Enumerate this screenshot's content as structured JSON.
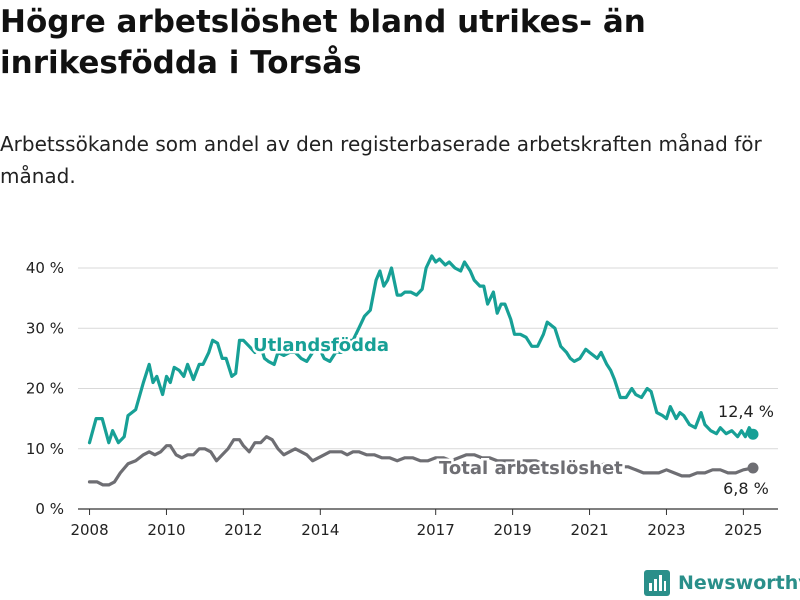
{
  "title": "Högre arbetslöshet bland utrikes- än inrikesfödda i Torsås",
  "subtitle": "Arbetssökande som andel av den registerbaserade arbetskraften månad för månad.",
  "brand": "Newsworthy",
  "brand_icon": "bar-chart-logo-icon",
  "chart_data": {
    "type": "line",
    "title": "",
    "xlabel": "",
    "ylabel": "",
    "xlim": [
      2007.7,
      2025.9
    ],
    "ylim": [
      0,
      45
    ],
    "yticks": [
      0,
      10,
      20,
      30,
      40
    ],
    "ytick_labels": [
      "0 %",
      "10 %",
      "20 %",
      "30 %",
      "40 %"
    ],
    "xticks": [
      2008,
      2010,
      2012,
      2014,
      2017,
      2019,
      2021,
      2023,
      2025
    ],
    "xtick_labels": [
      "2008",
      "2010",
      "2012",
      "2014",
      "2017",
      "2019",
      "2021",
      "2023",
      "2025"
    ],
    "grid": "horizontal",
    "legend": "inline labels",
    "series": [
      {
        "name": "Utlandsfödda",
        "color": "#17a096",
        "end_label": "12,4 %",
        "x": [
          2008.0,
          2008.17,
          2008.33,
          2008.5,
          2008.6,
          2008.75,
          2008.9,
          2009.0,
          2009.2,
          2009.4,
          2009.55,
          2009.65,
          2009.75,
          2009.9,
          2010.0,
          2010.1,
          2010.2,
          2010.33,
          2010.45,
          2010.55,
          2010.7,
          2010.85,
          2010.95,
          2011.1,
          2011.2,
          2011.33,
          2011.45,
          2011.55,
          2011.7,
          2011.8,
          2011.9,
          2012.0,
          2012.15,
          2012.3,
          2012.45,
          2012.55,
          2012.65,
          2012.8,
          2012.9,
          2013.05,
          2013.2,
          2013.35,
          2013.5,
          2013.65,
          2013.8,
          2013.95,
          2014.1,
          2014.25,
          2014.4,
          2014.55,
          2014.7,
          2014.85,
          2015.0,
          2015.15,
          2015.3,
          2015.45,
          2015.55,
          2015.65,
          2015.75,
          2015.85,
          2016.0,
          2016.1,
          2016.2,
          2016.35,
          2016.5,
          2016.65,
          2016.75,
          2016.9,
          2017.0,
          2017.1,
          2017.25,
          2017.35,
          2017.5,
          2017.65,
          2017.75,
          2017.9,
          2018.0,
          2018.15,
          2018.25,
          2018.35,
          2018.5,
          2018.6,
          2018.7,
          2018.8,
          2018.95,
          2019.05,
          2019.2,
          2019.35,
          2019.5,
          2019.65,
          2019.8,
          2019.9,
          2020.0,
          2020.1,
          2020.25,
          2020.4,
          2020.5,
          2020.6,
          2020.75,
          2020.9,
          2021.0,
          2021.1,
          2021.2,
          2021.3,
          2021.45,
          2021.55,
          2021.65,
          2021.8,
          2021.95,
          2022.1,
          2022.2,
          2022.35,
          2022.5,
          2022.6,
          2022.75,
          2022.9,
          2023.0,
          2023.1,
          2023.25,
          2023.35,
          2023.45,
          2023.6,
          2023.75,
          2023.9,
          2024.0,
          2024.15,
          2024.3,
          2024.4,
          2024.55,
          2024.7,
          2024.85,
          2024.95,
          2025.05,
          2025.15,
          2025.25
        ],
        "y": [
          11,
          15,
          15,
          11,
          13,
          11,
          12,
          15.5,
          16.5,
          21,
          24,
          21,
          22,
          19,
          22,
          21,
          23.5,
          23,
          22,
          24,
          21.5,
          24,
          24,
          26,
          28,
          27.5,
          25,
          25,
          22,
          22.5,
          28,
          28,
          27,
          26,
          27,
          25,
          24.5,
          24,
          26,
          25.5,
          26,
          26,
          25,
          24.5,
          26,
          27,
          25,
          24.5,
          26,
          26,
          28,
          28,
          30,
          32,
          33,
          38,
          39.5,
          37,
          38,
          40,
          35.5,
          35.5,
          36,
          36,
          35.5,
          36.5,
          40,
          42,
          41,
          41.5,
          40.5,
          41,
          40,
          39.5,
          41,
          39.5,
          38,
          37,
          37,
          34,
          36,
          32.5,
          34,
          34,
          31.5,
          29,
          29,
          28.5,
          27,
          27,
          29,
          31,
          30.5,
          30,
          27,
          26,
          25,
          24.5,
          25,
          26.5,
          26,
          25.5,
          25,
          26,
          24,
          23,
          21.5,
          18.5,
          18.5,
          20,
          19,
          18.5,
          20,
          19.5,
          16,
          15.5,
          15,
          17,
          15,
          16,
          15.5,
          14,
          13.5,
          16,
          14,
          13,
          12.5,
          13.5,
          12.5,
          13,
          12,
          13,
          12,
          13.5,
          12.4
        ]
      },
      {
        "name": "Total arbetslöshet",
        "color": "#6e6e73",
        "end_label": "6,8 %",
        "x": [
          2008.0,
          2008.2,
          2008.35,
          2008.5,
          2008.65,
          2008.8,
          2009.0,
          2009.2,
          2009.4,
          2009.55,
          2009.7,
          2009.85,
          2010.0,
          2010.1,
          2010.25,
          2010.4,
          2010.55,
          2010.7,
          2010.85,
          2011.0,
          2011.15,
          2011.3,
          2011.45,
          2011.6,
          2011.75,
          2011.9,
          2012.0,
          2012.15,
          2012.3,
          2012.45,
          2012.6,
          2012.75,
          2012.9,
          2013.05,
          2013.2,
          2013.35,
          2013.5,
          2013.65,
          2013.8,
          2013.95,
          2014.1,
          2014.25,
          2014.4,
          2014.55,
          2014.7,
          2014.85,
          2015.0,
          2015.2,
          2015.4,
          2015.6,
          2015.8,
          2016.0,
          2016.2,
          2016.4,
          2016.6,
          2016.8,
          2017.0,
          2017.2,
          2017.4,
          2017.6,
          2017.8,
          2018.0,
          2018.2,
          2018.4,
          2018.6,
          2018.8,
          2019.0,
          2019.2,
          2019.4,
          2019.6,
          2019.8,
          2020.0,
          2020.2,
          2020.4,
          2020.6,
          2020.8,
          2021.0,
          2021.2,
          2021.4,
          2021.6,
          2021.8,
          2022.0,
          2022.2,
          2022.4,
          2022.6,
          2022.8,
          2023.0,
          2023.2,
          2023.4,
          2023.6,
          2023.8,
          2024.0,
          2024.2,
          2024.4,
          2024.6,
          2024.8,
          2025.0,
          2025.25
        ],
        "y": [
          4.5,
          4.5,
          4,
          4,
          4.5,
          6,
          7.5,
          8,
          9,
          9.5,
          9,
          9.5,
          10.5,
          10.5,
          9,
          8.5,
          9,
          9,
          10,
          10,
          9.5,
          8,
          9,
          10,
          11.5,
          11.5,
          10.5,
          9.5,
          11,
          11,
          12,
          11.5,
          10,
          9,
          9.5,
          10,
          9.5,
          9,
          8,
          8.5,
          9,
          9.5,
          9.5,
          9.5,
          9,
          9.5,
          9.5,
          9,
          9,
          8.5,
          8.5,
          8,
          8.5,
          8.5,
          8,
          8,
          8.5,
          8.5,
          8,
          8.5,
          9,
          9,
          8.5,
          8.5,
          8,
          8,
          8,
          8,
          8,
          8,
          7.5,
          7.5,
          7.5,
          7.5,
          7,
          7,
          7,
          7,
          7.5,
          7.5,
          7,
          7,
          6.5,
          6,
          6,
          6,
          6.5,
          6,
          5.5,
          5.5,
          6,
          6,
          6.5,
          6.5,
          6,
          6,
          6.5,
          6.8
        ]
      }
    ]
  }
}
